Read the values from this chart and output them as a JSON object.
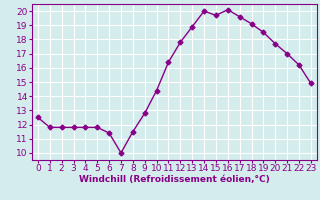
{
  "x": [
    0,
    1,
    2,
    3,
    4,
    5,
    6,
    7,
    8,
    9,
    10,
    11,
    12,
    13,
    14,
    15,
    16,
    17,
    18,
    19,
    20,
    21,
    22,
    23
  ],
  "y": [
    12.5,
    11.8,
    11.8,
    11.8,
    11.8,
    11.8,
    11.4,
    10.0,
    11.5,
    12.8,
    14.4,
    16.4,
    17.8,
    18.9,
    20.0,
    19.7,
    20.1,
    19.6,
    19.1,
    18.5,
    17.7,
    17.0,
    16.2,
    14.9
  ],
  "line_color": "#880088",
  "marker": "D",
  "marker_size": 2.5,
  "line_width": 1.0,
  "xlabel": "Windchill (Refroidissement éolien,°C)",
  "xlabel_fontsize": 6.5,
  "bg_color": "#d4ecec",
  "grid_color": "#ffffff",
  "tick_fontsize": 6.5,
  "xlim": [
    -0.5,
    23.5
  ],
  "ylim": [
    9.5,
    20.5
  ],
  "yticks": [
    10,
    11,
    12,
    13,
    14,
    15,
    16,
    17,
    18,
    19,
    20
  ],
  "xticks": [
    0,
    1,
    2,
    3,
    4,
    5,
    6,
    7,
    8,
    9,
    10,
    11,
    12,
    13,
    14,
    15,
    16,
    17,
    18,
    19,
    20,
    21,
    22,
    23
  ]
}
